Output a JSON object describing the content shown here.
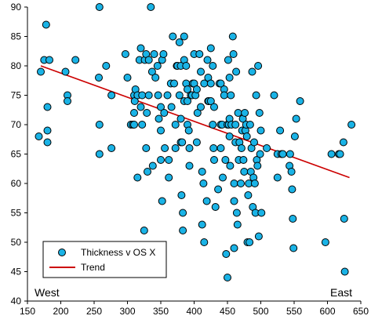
{
  "colors": {
    "marker_fill": "#1ab3e6",
    "marker_stroke": "#000000",
    "trend": "#cc0000",
    "axis": "#000000"
  },
  "annotations": {
    "west": "West",
    "east": "East"
  },
  "legend": {
    "placement": "bottom-left",
    "points_label": "Thickness v OS X",
    "trend_label": "Trend"
  },
  "chart_data": {
    "type": "scatter",
    "title": "",
    "xlabel": "",
    "ylabel": "",
    "xlim": [
      150,
      650
    ],
    "ylim": [
      40,
      90
    ],
    "xticks": [
      150,
      200,
      250,
      300,
      350,
      400,
      450,
      500,
      550,
      600,
      650
    ],
    "yticks": [
      40,
      45,
      50,
      55,
      60,
      65,
      70,
      75,
      80,
      85,
      90
    ],
    "grid": false,
    "series": [
      {
        "name": "Thickness v OS X",
        "points": [
          [
            167,
            68
          ],
          [
            170,
            79
          ],
          [
            175,
            81
          ],
          [
            178,
            87
          ],
          [
            180,
            73
          ],
          [
            180,
            69
          ],
          [
            180,
            67
          ],
          [
            183,
            81
          ],
          [
            207,
            79
          ],
          [
            210,
            75
          ],
          [
            210,
            74
          ],
          [
            222,
            81
          ],
          [
            258,
            90
          ],
          [
            257,
            78
          ],
          [
            258,
            70
          ],
          [
            258,
            65
          ],
          [
            268,
            80
          ],
          [
            276,
            75
          ],
          [
            276,
            66
          ],
          [
            297,
            82
          ],
          [
            300,
            78
          ],
          [
            305,
            70
          ],
          [
            308,
            70
          ],
          [
            310,
            75
          ],
          [
            311,
            74
          ],
          [
            310,
            72
          ],
          [
            310,
            70
          ],
          [
            312,
            76
          ],
          [
            315,
            75
          ],
          [
            315,
            61
          ],
          [
            318,
            81
          ],
          [
            320,
            83
          ],
          [
            320,
            73
          ],
          [
            322,
            75
          ],
          [
            322,
            70
          ],
          [
            325,
            52
          ],
          [
            326,
            81
          ],
          [
            328,
            82
          ],
          [
            328,
            66
          ],
          [
            329,
            72
          ],
          [
            332,
            81
          ],
          [
            332,
            75
          ],
          [
            330,
            62
          ],
          [
            335,
            90
          ],
          [
            337,
            79
          ],
          [
            338,
            63
          ],
          [
            340,
            82
          ],
          [
            342,
            78
          ],
          [
            345,
            80
          ],
          [
            346,
            75
          ],
          [
            347,
            71
          ],
          [
            350,
            73
          ],
          [
            350,
            69
          ],
          [
            350,
            64
          ],
          [
            352,
            81
          ],
          [
            352,
            57
          ],
          [
            354,
            82
          ],
          [
            355,
            72
          ],
          [
            356,
            66
          ],
          [
            360,
            75
          ],
          [
            362,
            64
          ],
          [
            362,
            61
          ],
          [
            365,
            77
          ],
          [
            366,
            73
          ],
          [
            368,
            85
          ],
          [
            370,
            77
          ],
          [
            372,
            66
          ],
          [
            372,
            70
          ],
          [
            374,
            80
          ],
          [
            375,
            80
          ],
          [
            378,
            84
          ],
          [
            378,
            75
          ],
          [
            380,
            80
          ],
          [
            380,
            71
          ],
          [
            380,
            67
          ],
          [
            381,
            58
          ],
          [
            382,
            67
          ],
          [
            383,
            55
          ],
          [
            383,
            52
          ],
          [
            385,
            85
          ],
          [
            385,
            81
          ],
          [
            385,
            74
          ],
          [
            388,
            80
          ],
          [
            388,
            77
          ],
          [
            390,
            76
          ],
          [
            390,
            74
          ],
          [
            390,
            70
          ],
          [
            392,
            69
          ],
          [
            393,
            66
          ],
          [
            393,
            63
          ],
          [
            395,
            75
          ],
          [
            397,
            75
          ],
          [
            398,
            77
          ],
          [
            400,
            82
          ],
          [
            400,
            77
          ],
          [
            402,
            75
          ],
          [
            404,
            76
          ],
          [
            404,
            67
          ],
          [
            405,
            72
          ],
          [
            408,
            82
          ],
          [
            410,
            79
          ],
          [
            410,
            73
          ],
          [
            412,
            62
          ],
          [
            412,
            53
          ],
          [
            414,
            60
          ],
          [
            415,
            77
          ],
          [
            415,
            50
          ],
          [
            419,
            57
          ],
          [
            420,
            81
          ],
          [
            421,
            78
          ],
          [
            421,
            74
          ],
          [
            422,
            74
          ],
          [
            425,
            83
          ],
          [
            425,
            77
          ],
          [
            425,
            74
          ],
          [
            428,
            80
          ],
          [
            428,
            70
          ],
          [
            429,
            66
          ],
          [
            430,
            64
          ],
          [
            430,
            73
          ],
          [
            432,
            56
          ],
          [
            436,
            59
          ],
          [
            438,
            77
          ],
          [
            440,
            77
          ],
          [
            440,
            70
          ],
          [
            440,
            66
          ],
          [
            442,
            70
          ],
          [
            443,
            61
          ],
          [
            445,
            76
          ],
          [
            445,
            75
          ],
          [
            447,
            64
          ],
          [
            448,
            48
          ],
          [
            450,
            70
          ],
          [
            450,
            44
          ],
          [
            451,
            81
          ],
          [
            452,
            70
          ],
          [
            453,
            78
          ],
          [
            453,
            71
          ],
          [
            453,
            68
          ],
          [
            454,
            63
          ],
          [
            455,
            75
          ],
          [
            456,
            70
          ],
          [
            458,
            85
          ],
          [
            459,
            82
          ],
          [
            460,
            60
          ],
          [
            460,
            57
          ],
          [
            460,
            49
          ],
          [
            462,
            70
          ],
          [
            462,
            67
          ],
          [
            463,
            79
          ],
          [
            464,
            55
          ],
          [
            465,
            53
          ],
          [
            466,
            72
          ],
          [
            467,
            64
          ],
          [
            468,
            67
          ],
          [
            470,
            60
          ],
          [
            471,
            66
          ],
          [
            472,
            69
          ],
          [
            473,
            71
          ],
          [
            474,
            64
          ],
          [
            475,
            62
          ],
          [
            476,
            72
          ],
          [
            477,
            69
          ],
          [
            478,
            70
          ],
          [
            479,
            68
          ],
          [
            480,
            50
          ],
          [
            481,
            58
          ],
          [
            482,
            60
          ],
          [
            483,
            50
          ],
          [
            484,
            70
          ],
          [
            485,
            62
          ],
          [
            486,
            66
          ],
          [
            487,
            79
          ],
          [
            488,
            56
          ],
          [
            489,
            61
          ],
          [
            490,
            67
          ],
          [
            491,
            60
          ],
          [
            492,
            55
          ],
          [
            493,
            75
          ],
          [
            494,
            64
          ],
          [
            495,
            63
          ],
          [
            496,
            80
          ],
          [
            497,
            51
          ],
          [
            498,
            72
          ],
          [
            499,
            65
          ],
          [
            500,
            69
          ],
          [
            501,
            55
          ],
          [
            509,
            66
          ],
          [
            520,
            75
          ],
          [
            525,
            65
          ],
          [
            525,
            61
          ],
          [
            529,
            69
          ],
          [
            531,
            65
          ],
          [
            533,
            65
          ],
          [
            543,
            63
          ],
          [
            544,
            65
          ],
          [
            546,
            62
          ],
          [
            547,
            59
          ],
          [
            548,
            54
          ],
          [
            549,
            49
          ],
          [
            551,
            68
          ],
          [
            553,
            71
          ],
          [
            559,
            74
          ],
          [
            597,
            50
          ],
          [
            606,
            65
          ],
          [
            617,
            65
          ],
          [
            619,
            65
          ],
          [
            624,
            67
          ],
          [
            625,
            54
          ],
          [
            626,
            45
          ],
          [
            636,
            70
          ]
        ]
      },
      {
        "name": "Trend",
        "points": [
          [
            170,
            80
          ],
          [
            633,
            61
          ]
        ]
      }
    ]
  }
}
